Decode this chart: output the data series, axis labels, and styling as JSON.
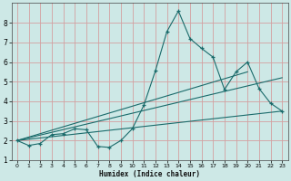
{
  "xlabel": "Humidex (Indice chaleur)",
  "bg_color": "#cde8e6",
  "grid_color": "#d4a0a0",
  "line_color": "#1a6b6b",
  "xlim": [
    -0.5,
    23.5
  ],
  "ylim": [
    1,
    9
  ],
  "yticks": [
    1,
    2,
    3,
    4,
    5,
    6,
    7,
    8
  ],
  "xticks": [
    0,
    1,
    2,
    3,
    4,
    5,
    6,
    7,
    8,
    9,
    10,
    11,
    12,
    13,
    14,
    15,
    16,
    17,
    18,
    19,
    20,
    21,
    22,
    23
  ],
  "main_line": {
    "x": [
      0,
      1,
      2,
      3,
      4,
      5,
      6,
      7,
      8,
      9,
      10,
      11,
      12,
      13,
      14,
      15,
      16,
      17,
      18,
      19,
      20,
      21,
      22,
      23
    ],
    "y": [
      2.0,
      1.75,
      1.85,
      2.3,
      2.35,
      2.6,
      2.55,
      1.7,
      1.65,
      2.0,
      2.6,
      3.8,
      5.55,
      7.55,
      8.6,
      7.2,
      6.7,
      6.25,
      4.6,
      5.5,
      6.0,
      4.65,
      3.9,
      3.5
    ]
  },
  "trend_lines": [
    {
      "x": [
        0,
        23
      ],
      "y": [
        2.0,
        3.5
      ]
    },
    {
      "x": [
        0,
        23
      ],
      "y": [
        2.0,
        5.2
      ]
    },
    {
      "x": [
        0,
        20
      ],
      "y": [
        2.0,
        5.5
      ]
    }
  ]
}
